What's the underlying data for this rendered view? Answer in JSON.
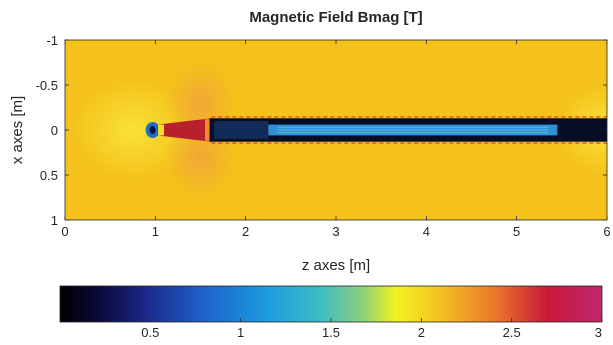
{
  "chart_data": {
    "type": "heatmap",
    "title": "Magnetic Field Bmag [T]",
    "xlabel": "z axes [m]",
    "ylabel": "x axes [m]",
    "xlim": [
      0,
      6
    ],
    "ylim": [
      -1,
      1
    ],
    "y_reversed": true,
    "x_ticks": [
      "0",
      "1",
      "2",
      "3",
      "4",
      "5",
      "6"
    ],
    "y_ticks": [
      "-1",
      "-0.5",
      "0",
      "0.5",
      "1"
    ],
    "background_value": 2.0,
    "colorbar": {
      "orientation": "horizontal",
      "placement": "bottom",
      "range": [
        0,
        3
      ],
      "ticks": [
        "0.5",
        "1",
        "1.5",
        "2",
        "2.5",
        "3"
      ],
      "colormap": "parula-like"
    },
    "regions": [
      {
        "name": "low-field spot",
        "z": [
          0.92,
          1.02
        ],
        "x": [
          -0.08,
          0.08
        ],
        "value": 0.2
      },
      {
        "name": "high-field cone",
        "z": [
          1.05,
          1.62
        ],
        "x": [
          -0.1,
          0.1
        ],
        "value": 2.8
      },
      {
        "name": "inner tube",
        "z": [
          1.6,
          6.0
        ],
        "x": [
          -0.13,
          0.13
        ],
        "value": 0.15
      },
      {
        "name": "core band",
        "z": [
          2.25,
          5.45
        ],
        "x": [
          -0.06,
          0.06
        ],
        "value": 0.7
      }
    ],
    "colors": {
      "background": "#f4c21a",
      "halo_light": "#f9e43a",
      "halo_orange": "#f0a43a",
      "cone_red": "#b8202e",
      "tube_dark": "#060d24",
      "core_blue": "#2f8fd8",
      "dash_red": "#d9342a"
    }
  }
}
